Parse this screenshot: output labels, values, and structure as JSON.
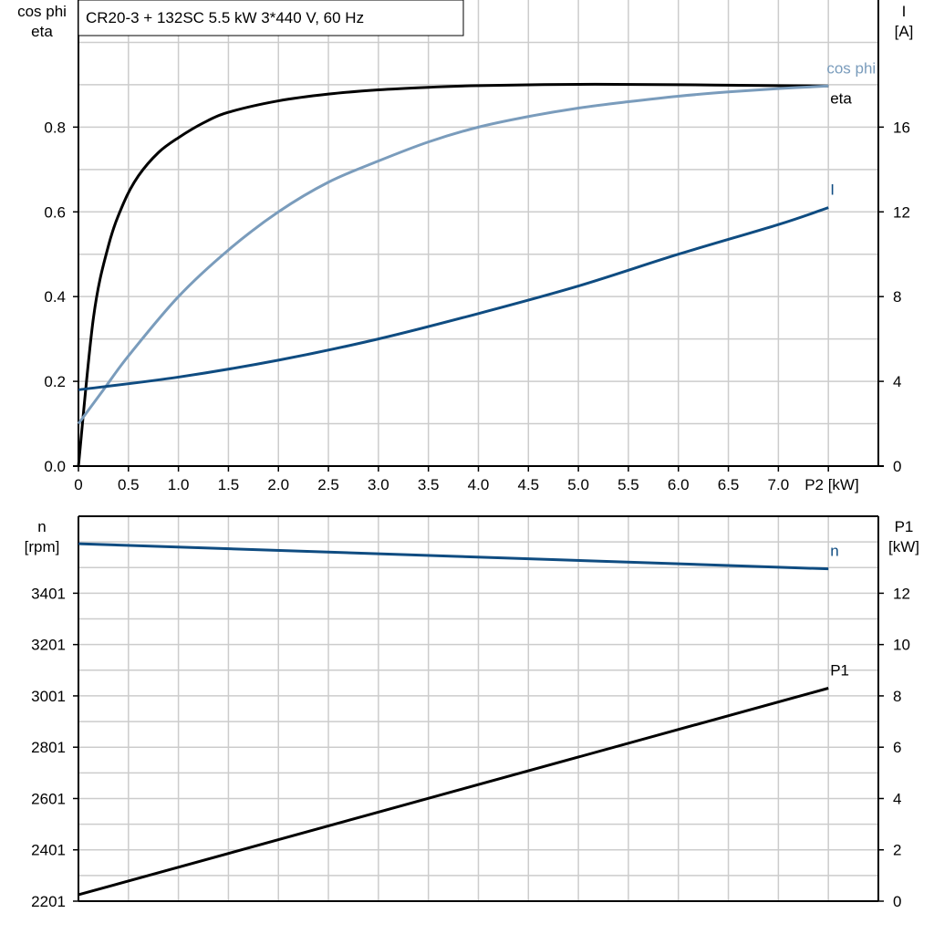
{
  "chart_data": [
    {
      "type": "line",
      "title": "CR20-3 + 132SC   5.5 kW   3*440 V, 60 Hz",
      "xlabel": "P2 [kW]",
      "xlim": [
        0,
        8
      ],
      "xticks": [
        "0",
        "0.5",
        "1.0",
        "1.5",
        "2.0",
        "2.5",
        "3.0",
        "3.5",
        "4.0",
        "4.5",
        "5.0",
        "5.5",
        "6.0",
        "6.5",
        "7.0"
      ],
      "ylabel_left": [
        "cos phi",
        "eta"
      ],
      "ylim_left": [
        0,
        1.1
      ],
      "yticks_left": [
        "0.0",
        "0.2",
        "0.4",
        "0.6",
        "0.8"
      ],
      "ylabel_right": [
        "I",
        "[A]"
      ],
      "ylim_right": [
        0,
        22
      ],
      "yticks_right": [
        "0",
        "4",
        "8",
        "12",
        "16"
      ],
      "grid": true,
      "series": [
        {
          "name": "eta",
          "axis": "left",
          "color": "#000000",
          "x": [
            0,
            0.15,
            0.3,
            0.45,
            0.6,
            0.8,
            1.0,
            1.25,
            1.5,
            2.0,
            2.5,
            3.0,
            3.5,
            4.0,
            5.0,
            6.0,
            7.0,
            7.5
          ],
          "y": [
            0,
            0.35,
            0.52,
            0.62,
            0.685,
            0.74,
            0.775,
            0.81,
            0.835,
            0.862,
            0.878,
            0.888,
            0.894,
            0.898,
            0.901,
            0.9,
            0.898,
            0.897
          ]
        },
        {
          "name": "cos phi",
          "axis": "left",
          "color": "#7a9cbc",
          "x": [
            0,
            0.25,
            0.5,
            1.0,
            1.5,
            2.0,
            2.5,
            3.0,
            3.5,
            4.0,
            4.5,
            5.0,
            5.5,
            6.0,
            6.5,
            7.0,
            7.5
          ],
          "y": [
            0.1,
            0.18,
            0.26,
            0.4,
            0.51,
            0.6,
            0.67,
            0.72,
            0.765,
            0.8,
            0.825,
            0.845,
            0.86,
            0.873,
            0.883,
            0.891,
            0.897
          ]
        },
        {
          "name": "I",
          "axis": "right",
          "color": "#0f4c81",
          "x": [
            0,
            1,
            2,
            3,
            4,
            5,
            6,
            7,
            7.5
          ],
          "y": [
            3.6,
            4.2,
            5.0,
            6.0,
            7.2,
            8.5,
            10.0,
            11.4,
            12.2
          ]
        }
      ]
    },
    {
      "type": "line",
      "xlim": [
        0,
        8
      ],
      "ylabel_left": [
        "n",
        "[rpm]"
      ],
      "ylim_left": [
        2201,
        3701
      ],
      "yticks_left": [
        "2201",
        "2401",
        "2601",
        "2801",
        "3001",
        "3201",
        "3401"
      ],
      "ylabel_right": [
        "P1",
        "[kW]"
      ],
      "ylim_right": [
        0,
        15
      ],
      "yticks_right": [
        "0",
        "2",
        "4",
        "6",
        "8",
        "10",
        "12"
      ],
      "grid": true,
      "series": [
        {
          "name": "n",
          "axis": "left",
          "color": "#0f4c81",
          "x": [
            0,
            7.5
          ],
          "y": [
            3594,
            3496
          ]
        },
        {
          "name": "P1",
          "axis": "right",
          "color": "#000000",
          "x": [
            0,
            7.5
          ],
          "y": [
            0.25,
            8.3
          ]
        }
      ]
    }
  ]
}
